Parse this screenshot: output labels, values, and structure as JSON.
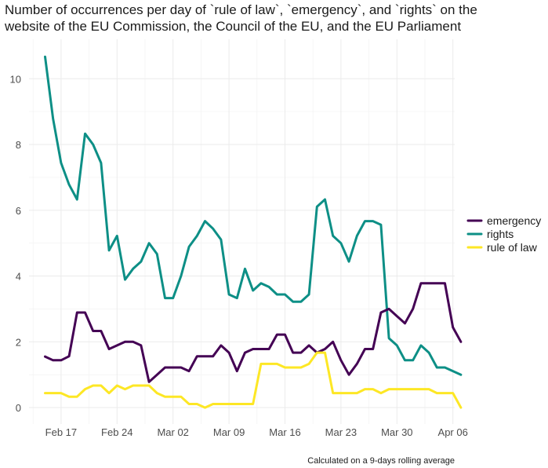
{
  "chart_data": {
    "type": "line",
    "title_lines": [
      "Number of occurrences per day of `rule of law`, `emergency`, and `rights` on the",
      "website of the EU Commission, the Council of the EU, and the EU Parliament"
    ],
    "caption": "Calculated on a 9-days rolling average",
    "xlabel": "",
    "ylabel": "",
    "x_start": "2020-02-15",
    "x_tick_labels": [
      "Feb 17",
      "Feb 24",
      "Mar 02",
      "Mar 09",
      "Mar 16",
      "Mar 23",
      "Mar 30",
      "Apr 06"
    ],
    "y_ticks": [
      0,
      2,
      4,
      6,
      8,
      10
    ],
    "ylim": [
      -0.5,
      11.2
    ],
    "grid": true,
    "legend_position": "right",
    "series": [
      {
        "name": "emergency",
        "color": "#440154",
        "values": [
          1.55,
          1.44,
          1.44,
          1.56,
          2.89,
          2.89,
          2.33,
          2.33,
          1.78,
          1.89,
          2.0,
          2.0,
          1.89,
          0.78,
          1.0,
          1.22,
          1.22,
          1.22,
          1.11,
          1.56,
          1.56,
          1.56,
          1.89,
          1.67,
          1.11,
          1.67,
          1.78,
          1.78,
          1.78,
          2.22,
          2.22,
          1.67,
          1.67,
          1.89,
          1.67,
          1.78,
          2.0,
          1.44,
          1.0,
          1.33,
          1.78,
          1.78,
          2.89,
          3.0,
          2.78,
          2.56,
          3.0,
          3.78,
          3.78,
          3.78,
          3.78,
          2.44,
          2.0
        ]
      },
      {
        "name": "rights",
        "color": "#0d8f86",
        "values": [
          10.67,
          8.78,
          7.44,
          6.78,
          6.33,
          8.33,
          8.0,
          7.44,
          4.78,
          5.22,
          3.89,
          4.22,
          4.44,
          5.0,
          4.67,
          3.33,
          3.33,
          4.0,
          4.89,
          5.22,
          5.67,
          5.44,
          5.11,
          3.44,
          3.33,
          4.22,
          3.56,
          3.78,
          3.67,
          3.44,
          3.44,
          3.22,
          3.22,
          3.44,
          6.11,
          6.33,
          5.22,
          5.0,
          4.44,
          5.22,
          5.67,
          5.67,
          5.56,
          2.11,
          1.89,
          1.44,
          1.44,
          1.89,
          1.67,
          1.22,
          1.22,
          1.11,
          1.0
        ]
      },
      {
        "name": "rule of law",
        "color": "#fde725",
        "values": [
          0.44,
          0.44,
          0.44,
          0.33,
          0.33,
          0.56,
          0.67,
          0.67,
          0.44,
          0.67,
          0.56,
          0.67,
          0.67,
          0.67,
          0.44,
          0.33,
          0.33,
          0.33,
          0.11,
          0.11,
          0.0,
          0.11,
          0.11,
          0.11,
          0.11,
          0.11,
          0.11,
          1.33,
          1.33,
          1.33,
          1.22,
          1.22,
          1.22,
          1.33,
          1.67,
          1.67,
          0.44,
          0.44,
          0.44,
          0.44,
          0.56,
          0.56,
          0.44,
          0.56,
          0.56,
          0.56,
          0.56,
          0.56,
          0.56,
          0.44,
          0.44,
          0.44,
          0.0
        ]
      }
    ]
  }
}
